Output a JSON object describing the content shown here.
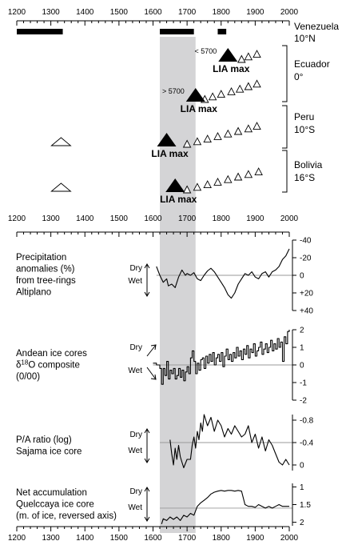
{
  "chart_data": [
    {
      "type": "timeline",
      "x_ticks": [
        "1200",
        "1300",
        "1400",
        "1500",
        "1600",
        "1700",
        "1800",
        "1900",
        "2000"
      ],
      "xlim": [
        1200,
        2000
      ],
      "shaded_interval": [
        1620,
        1725
      ],
      "venezuela": {
        "region": "Venezuela",
        "lat": "10°N",
        "bars": [
          [
            1200,
            1335
          ],
          [
            1620,
            1720
          ],
          [
            1790,
            1815
          ]
        ]
      },
      "regions": [
        {
          "region": "Ecuador",
          "lat": "0°",
          "lia_label": "LIA max",
          "lia_year": 1820,
          "elev_label": "< 5700",
          "moraines": [
            1860,
            1880,
            1905
          ]
        },
        {
          "region": "",
          "lat": "",
          "lia_label": "LIA max",
          "lia_year": 1725,
          "elev_label": "> 5700",
          "moraines": [
            1752,
            1775,
            1800,
            1830,
            1855,
            1880,
            1905
          ]
        },
        {
          "region": "Peru",
          "lat": "10°S",
          "lia_label": "LIA max",
          "lia_year": 1640,
          "elev_label": "",
          "early_moraine": 1330,
          "moraines": [
            1700,
            1730,
            1760,
            1790,
            1820,
            1850,
            1880,
            1905
          ]
        },
        {
          "region": "Bolivia",
          "lat": "16°S",
          "lia_label": "LIA max",
          "lia_year": 1665,
          "elev_label": "",
          "early_moraine": 1330,
          "moraines": [
            1700,
            1730,
            1760,
            1790,
            1820,
            1850,
            1880,
            1910
          ]
        }
      ]
    },
    {
      "type": "line",
      "label_lines": [
        "Precipitation",
        "anomalies (%)",
        "from tree-rings",
        "Altiplano"
      ],
      "dry_label": "Dry",
      "wet_label": "Wet",
      "y_reversed": true,
      "ylim": [
        -40,
        40
      ],
      "y_ticks": [
        "-40",
        "-20",
        "0",
        "+20",
        "+40"
      ],
      "x": [
        1610,
        1620,
        1630,
        1640,
        1645,
        1655,
        1665,
        1675,
        1685,
        1695,
        1700,
        1710,
        1720,
        1730,
        1740,
        1750,
        1760,
        1770,
        1780,
        1790,
        1800,
        1810,
        1820,
        1830,
        1840,
        1850,
        1860,
        1870,
        1880,
        1890,
        1900,
        1910,
        1920,
        1930,
        1940,
        1950,
        1960,
        1970,
        1980,
        1990,
        2000
      ],
      "values": [
        -10,
        0,
        8,
        4,
        12,
        10,
        14,
        2,
        -6,
        0,
        -2,
        0,
        -3,
        4,
        6,
        0,
        -5,
        -8,
        -4,
        2,
        8,
        14,
        22,
        26,
        20,
        10,
        4,
        -2,
        0,
        -4,
        2,
        4,
        -2,
        -4,
        2,
        -4,
        -6,
        -10,
        -18,
        -22,
        -30
      ]
    },
    {
      "type": "line",
      "label_lines": [
        "Andean ice cores",
        "δ18O composite",
        "(0/00)"
      ],
      "dry_label": "Dry",
      "wet_label": "Wet",
      "ylim": [
        -2,
        2
      ],
      "y_ticks": [
        "2",
        "1",
        "0",
        "-1",
        "-2"
      ],
      "x": [
        1600,
        1610,
        1620,
        1625,
        1630,
        1635,
        1640,
        1645,
        1650,
        1655,
        1660,
        1665,
        1670,
        1675,
        1680,
        1685,
        1690,
        1695,
        1700,
        1705,
        1710,
        1715,
        1720,
        1725,
        1730,
        1735,
        1740,
        1745,
        1750,
        1755,
        1760,
        1765,
        1770,
        1775,
        1780,
        1785,
        1790,
        1795,
        1800,
        1805,
        1810,
        1815,
        1820,
        1825,
        1830,
        1835,
        1840,
        1845,
        1850,
        1855,
        1860,
        1865,
        1870,
        1875,
        1880,
        1885,
        1890,
        1895,
        1900,
        1905,
        1910,
        1915,
        1920,
        1925,
        1930,
        1935,
        1940,
        1945,
        1950,
        1955,
        1960,
        1965,
        1970,
        1975,
        1980,
        1985,
        1990,
        1995,
        2000
      ],
      "values": [
        0.1,
        0.0,
        -0.2,
        -1.1,
        -0.2,
        -0.6,
        0.2,
        -0.8,
        -0.3,
        -0.5,
        -0.2,
        -0.8,
        -0.6,
        -0.2,
        -0.7,
        -0.3,
        -0.9,
        -0.4,
        -0.1,
        -0.5,
        0.4,
        0.8,
        0.2,
        -0.5,
        0.1,
        -0.3,
        0.3,
        0.4,
        -0.2,
        0.5,
        0.1,
        0.6,
        0.2,
        0.7,
        0.0,
        0.4,
        0.6,
        0.2,
        0.7,
        -0.1,
        0.5,
        0.9,
        0.3,
        0.6,
        0.2,
        0.7,
        0.4,
        1.0,
        0.5,
        0.8,
        0.3,
        0.9,
        0.6,
        1.1,
        0.4,
        0.9,
        0.7,
        1.2,
        0.5,
        0.8,
        1.0,
        1.3,
        0.6,
        0.9,
        1.2,
        0.7,
        1.0,
        1.4,
        0.8,
        1.2,
        0.9,
        1.5,
        1.0,
        1.3,
        0.2,
        1.6,
        1.2,
        1.9,
        2.0
      ]
    },
    {
      "type": "line",
      "label_lines": [
        "P/A ratio (log)",
        "Sajama ice core"
      ],
      "dry_label": "Dry",
      "wet_label": "Wet",
      "y_reversed": true,
      "ylim": [
        -0.9,
        0.1
      ],
      "y_ticks": [
        "-0.8",
        "-0.4",
        "0"
      ],
      "x": [
        1650,
        1655,
        1660,
        1665,
        1670,
        1675,
        1680,
        1685,
        1690,
        1700,
        1710,
        1715,
        1720,
        1725,
        1730,
        1735,
        1740,
        1745,
        1750,
        1760,
        1770,
        1780,
        1790,
        1800,
        1810,
        1820,
        1830,
        1840,
        1850,
        1860,
        1870,
        1880,
        1890,
        1900,
        1910,
        1920,
        1930,
        1940,
        1950,
        1960,
        1970,
        1980,
        1990,
        2000
      ],
      "values": [
        -0.45,
        -0.2,
        0.0,
        -0.3,
        -0.1,
        -0.35,
        -0.15,
        -0.05,
        0.05,
        -0.1,
        -0.1,
        -0.35,
        -0.5,
        -0.3,
        -0.6,
        -0.45,
        -0.75,
        -0.6,
        -0.9,
        -0.7,
        -0.85,
        -0.6,
        -0.8,
        -0.7,
        -0.5,
        -0.65,
        -0.55,
        -0.7,
        -0.6,
        -0.5,
        -0.55,
        -0.7,
        -0.4,
        -0.55,
        -0.3,
        -0.5,
        -0.25,
        -0.45,
        -0.35,
        -0.2,
        -0.05,
        0.0,
        -0.1,
        0.0
      ]
    },
    {
      "type": "line",
      "label_lines": [
        "Net accumulation",
        "Quelccaya ice core",
        "(m. of ice, reversed axis)"
      ],
      "dry_label": "Dry",
      "wet_label": "Wet",
      "y_reversed": true,
      "ylim": [
        0.9,
        2.1
      ],
      "y_ticks": [
        "1",
        "1.5",
        "2"
      ],
      "x": [
        1625,
        1630,
        1640,
        1650,
        1660,
        1670,
        1680,
        1690,
        1700,
        1710,
        1720,
        1730,
        1740,
        1750,
        1760,
        1770,
        1780,
        1790,
        1800,
        1810,
        1820,
        1830,
        1840,
        1850,
        1860,
        1870,
        1880,
        1890,
        1900,
        1910,
        1920,
        1930,
        1940,
        1950,
        1960,
        1970,
        1980,
        1990,
        2000
      ],
      "values": [
        2.05,
        1.9,
        1.95,
        1.85,
        1.92,
        1.85,
        1.95,
        1.8,
        1.85,
        1.75,
        1.8,
        1.55,
        1.45,
        1.38,
        1.3,
        1.2,
        1.15,
        1.12,
        1.1,
        1.12,
        1.1,
        1.1,
        1.12,
        1.1,
        1.12,
        1.5,
        1.55,
        1.55,
        1.58,
        1.5,
        1.55,
        1.6,
        1.55,
        1.6,
        1.55,
        1.5,
        1.55,
        1.55,
        1.55
      ]
    }
  ]
}
